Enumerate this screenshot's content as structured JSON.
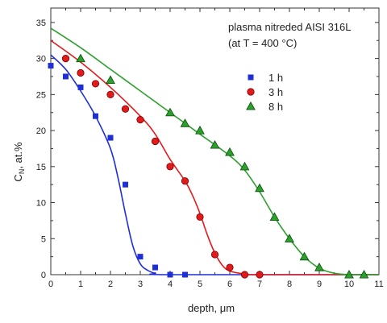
{
  "chart_data": {
    "type": "scatter",
    "title": "",
    "annotations": [
      "plasma nitreded AISI 316L",
      "(at T = 400 °C)"
    ],
    "xlabel": "depth, μm",
    "ylabel": {
      "main": "C",
      "sub": "N",
      "rest": ", at.%"
    },
    "xlim": [
      0,
      11
    ],
    "ylim": [
      0,
      37
    ],
    "x_ticks": [
      0,
      1,
      2,
      3,
      4,
      5,
      6,
      7,
      8,
      9,
      10,
      11
    ],
    "y_ticks": [
      0,
      5,
      10,
      15,
      20,
      25,
      30,
      35
    ],
    "grid": false,
    "legend_position": "top-right",
    "series": [
      {
        "name": "1 h",
        "marker": "square",
        "color": "#1f2fd6",
        "points": [
          [
            0,
            29
          ],
          [
            0.5,
            27.5
          ],
          [
            1,
            26
          ],
          [
            1.5,
            22
          ],
          [
            2,
            19
          ],
          [
            2.5,
            12.5
          ],
          [
            3,
            2.5
          ],
          [
            3.5,
            1
          ],
          [
            4,
            0
          ],
          [
            4.5,
            0
          ]
        ],
        "fit": [
          [
            0,
            30.5
          ],
          [
            0.5,
            28.5
          ],
          [
            1,
            25.5
          ],
          [
            1.5,
            22
          ],
          [
            2,
            17.5
          ],
          [
            2.25,
            13.5
          ],
          [
            2.5,
            8.5
          ],
          [
            2.75,
            4
          ],
          [
            3,
            1.5
          ],
          [
            3.25,
            0.6
          ],
          [
            3.5,
            0.2
          ],
          [
            4,
            0
          ],
          [
            11,
            0
          ]
        ]
      },
      {
        "name": "3 h",
        "marker": "circle",
        "color": "#e31a1c",
        "points": [
          [
            0.5,
            30
          ],
          [
            1,
            28
          ],
          [
            1.5,
            26.5
          ],
          [
            2,
            25
          ],
          [
            2.5,
            23
          ],
          [
            3,
            21.5
          ],
          [
            3.5,
            18.5
          ],
          [
            4,
            15
          ],
          [
            4.5,
            13
          ],
          [
            5,
            8
          ],
          [
            5.5,
            2.8
          ],
          [
            6,
            1
          ],
          [
            6.5,
            0
          ],
          [
            7,
            0
          ]
        ],
        "fit": [
          [
            0,
            32.5
          ],
          [
            1,
            29.5
          ],
          [
            2,
            26
          ],
          [
            3,
            22
          ],
          [
            3.5,
            19.5
          ],
          [
            4,
            16
          ],
          [
            4.5,
            13
          ],
          [
            4.75,
            11
          ],
          [
            5,
            8.5
          ],
          [
            5.25,
            5.5
          ],
          [
            5.5,
            3
          ],
          [
            5.75,
            1.3
          ],
          [
            6,
            0.5
          ],
          [
            6.5,
            0.1
          ],
          [
            7,
            0
          ],
          [
            11,
            0
          ]
        ]
      },
      {
        "name": "8 h",
        "marker": "triangle",
        "color": "#2ca02c",
        "points": [
          [
            1,
            30
          ],
          [
            2,
            27
          ],
          [
            4,
            22.5
          ],
          [
            4.5,
            21
          ],
          [
            5,
            20
          ],
          [
            5.5,
            18
          ],
          [
            6,
            17
          ],
          [
            6.5,
            15
          ],
          [
            7,
            12
          ],
          [
            7.5,
            8
          ],
          [
            8,
            5
          ],
          [
            8.5,
            2.5
          ],
          [
            9,
            1
          ],
          [
            10,
            0
          ],
          [
            10.5,
            0
          ]
        ],
        "fit": [
          [
            0,
            34.2
          ],
          [
            1,
            31.5
          ],
          [
            2,
            28.5
          ],
          [
            3,
            25.5
          ],
          [
            4,
            22.5
          ],
          [
            5,
            19.5
          ],
          [
            6,
            16.5
          ],
          [
            6.5,
            14.5
          ],
          [
            7,
            11.5
          ],
          [
            7.5,
            8
          ],
          [
            8,
            5
          ],
          [
            8.5,
            2.5
          ],
          [
            9,
            0.9
          ],
          [
            9.5,
            0.2
          ],
          [
            10,
            0
          ],
          [
            11,
            0
          ]
        ]
      }
    ]
  }
}
